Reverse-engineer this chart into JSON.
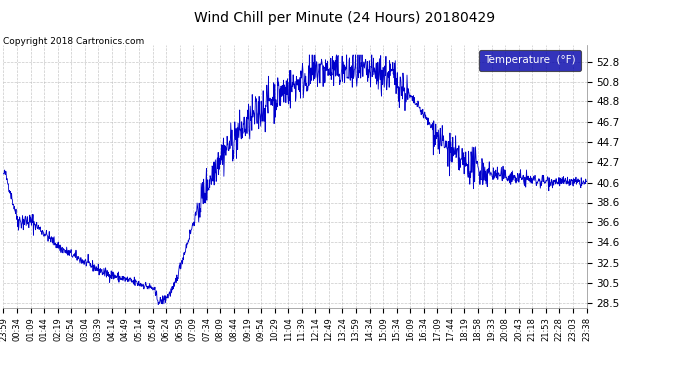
{
  "title": "Wind Chill per Minute (24 Hours) 20180429",
  "legend_label": "Temperature  (°F)",
  "copyright_text": "Copyright 2018 Cartronics.com",
  "line_color": "#0000CC",
  "background_color": "#ffffff",
  "plot_bg_color": "#ffffff",
  "grid_color": "#bbbbbb",
  "legend_bg": "#0000AA",
  "legend_fg": "#ffffff",
  "yticks": [
    28.5,
    30.5,
    32.5,
    34.6,
    36.6,
    38.6,
    40.6,
    42.7,
    44.7,
    46.7,
    48.8,
    50.8,
    52.8
  ],
  "ylim": [
    28.0,
    54.5
  ],
  "num_points": 1440,
  "x_tick_labels": [
    "23:59",
    "00:34",
    "01:09",
    "01:44",
    "02:19",
    "02:54",
    "03:04",
    "03:39",
    "04:14",
    "04:49",
    "05:14",
    "05:49",
    "06:24",
    "06:59",
    "07:09",
    "07:34",
    "08:09",
    "08:44",
    "09:19",
    "09:54",
    "10:29",
    "11:04",
    "11:39",
    "12:14",
    "12:49",
    "13:24",
    "13:59",
    "14:34",
    "15:09",
    "15:34",
    "16:09",
    "16:34",
    "17:09",
    "17:44",
    "18:19",
    "18:58",
    "19:33",
    "20:08",
    "20:43",
    "21:18",
    "21:53",
    "22:28",
    "23:03",
    "23:38"
  ],
  "title_fontsize": 10,
  "copyright_fontsize": 6.5,
  "ytick_fontsize": 7.5,
  "xtick_fontsize": 6
}
